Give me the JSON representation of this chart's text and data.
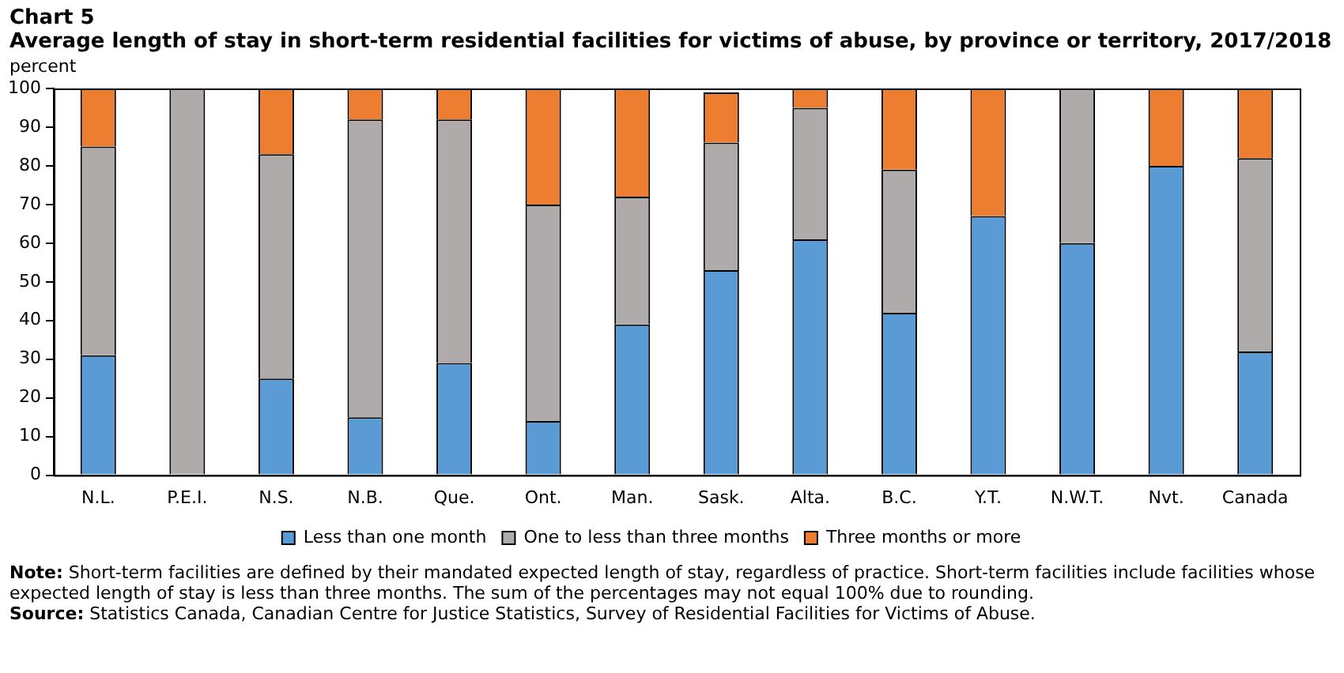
{
  "chart_data": {
    "type": "bar",
    "title": "Chart 5",
    "subtitle": "Average length of stay in short-term residential facilities for victims of abuse, by province or territory, 2017/2018",
    "ylabel": "percent",
    "categories": [
      "N.L.",
      "P.E.I.",
      "N.S.",
      "N.B.",
      "Que.",
      "Ont.",
      "Man.",
      "Sask.",
      "Alta.",
      "B.C.",
      "Y.T.",
      "N.W.T.",
      "Nvt.",
      "Canada"
    ],
    "series": [
      {
        "name": "Less than one month",
        "color": "#5b9bd5",
        "values": [
          31,
          0,
          25,
          15,
          29,
          14,
          39,
          53,
          61,
          42,
          67,
          60,
          80,
          32
        ]
      },
      {
        "name": "One to less than three months",
        "color": "#afabab",
        "values": [
          54,
          100,
          58,
          77,
          63,
          56,
          33,
          33,
          34,
          37,
          0,
          40,
          0,
          50
        ]
      },
      {
        "name": "Three months or more",
        "color": "#ed7d31",
        "values": [
          15,
          0,
          17,
          8,
          8,
          30,
          28,
          13,
          5,
          21,
          33,
          0,
          20,
          18
        ]
      }
    ],
    "stacked": true,
    "ylim": [
      0,
      100
    ],
    "yticks": [
      0,
      10,
      20,
      30,
      40,
      50,
      60,
      70,
      80,
      90,
      100
    ],
    "grid": false,
    "legend": "bottom",
    "annotations": [
      "Note: Short-term facilities are defined by their mandated expected length of stay, regardless of practice. Short-term facilities include facilities whose expected length of stay is less than three months. The sum of the percentages may not equal 100% due to rounding.",
      "Source: Statistics Canada, Canadian Centre for Justice Statistics, Survey of Residential Facilities for Victims of Abuse."
    ]
  }
}
